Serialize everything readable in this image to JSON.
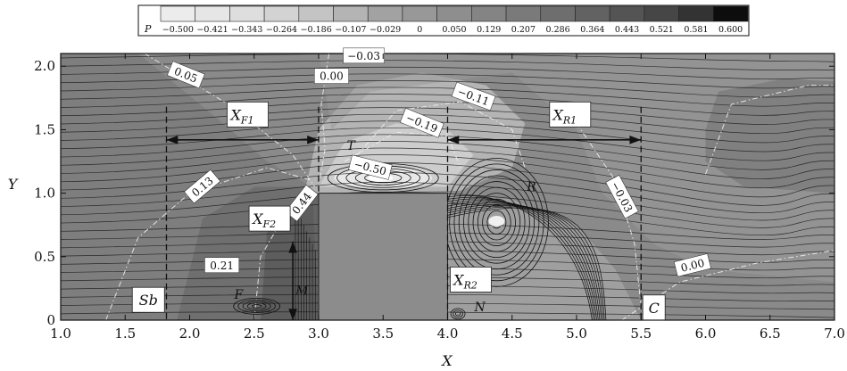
{
  "chart_data": {
    "type": "heatmap",
    "title": "",
    "xlabel": "X",
    "ylabel": "Y",
    "xlim": [
      1.0,
      7.0
    ],
    "ylim": [
      0.0,
      2.1
    ],
    "x_ticks": [
      "1.0",
      "1.5",
      "2.0",
      "2.5",
      "3.0",
      "3.5",
      "4.0",
      "4.5",
      "5.0",
      "5.5",
      "6.0",
      "6.5",
      "7.0"
    ],
    "y_ticks": [
      "0",
      "0.5",
      "1.0",
      "1.5",
      "2.0"
    ],
    "colorbar": {
      "title": "P",
      "levels": [
        "−0.500",
        "−0.421",
        "−0.343",
        "−0.264",
        "−0.186",
        "−0.107",
        "−0.029",
        "0",
        "0.050",
        "0.129",
        "0.207",
        "0.286",
        "0.364",
        "0.443",
        "0.521",
        "0.581",
        "0.600"
      ],
      "colors": [
        "#ececec",
        "#e6e6e6",
        "#dedede",
        "#d3d3d3",
        "#c4c4c4",
        "#b4b4b4",
        "#a2a2a2",
        "#989898",
        "#8e8e8e",
        "#848484",
        "#7a7a7a",
        "#6e6e6e",
        "#626262",
        "#545454",
        "#464646",
        "#333333",
        "#0d0d0d"
      ]
    },
    "obstacle": {
      "x": [
        3.0,
        4.0
      ],
      "y": [
        0.0,
        1.0
      ],
      "color": "#8c8c8c"
    },
    "contour_labels": [
      {
        "text": "0.05",
        "x": 1.97,
        "y": 1.93,
        "rot": 22
      },
      {
        "text": "0.00",
        "x": 3.1,
        "y": 1.92,
        "rot": 0
      },
      {
        "text": "−0.03",
        "x": 3.35,
        "y": 2.08,
        "rot": 0
      },
      {
        "text": "−0.11",
        "x": 4.2,
        "y": 1.76,
        "rot": 20
      },
      {
        "text": "−0.19",
        "x": 3.8,
        "y": 1.55,
        "rot": 22
      },
      {
        "text": "−0.50",
        "x": 3.4,
        "y": 1.2,
        "rot": 14
      },
      {
        "text": "0.13",
        "x": 2.1,
        "y": 1.05,
        "rot": -40
      },
      {
        "text": "0.44",
        "x": 2.87,
        "y": 0.92,
        "rot": -52
      },
      {
        "text": "0.21",
        "x": 2.25,
        "y": 0.43,
        "rot": 0
      },
      {
        "text": "−0.03",
        "x": 5.35,
        "y": 0.97,
        "rot": 62
      },
      {
        "text": "0.00",
        "x": 5.9,
        "y": 0.43,
        "rot": -14
      }
    ],
    "region_labels": [
      {
        "text": "X_F1",
        "base": "X",
        "sub": "F1",
        "x": 2.45,
        "y": 1.62
      },
      {
        "text": "X_R1",
        "base": "X",
        "sub": "R1",
        "x": 4.95,
        "y": 1.62
      },
      {
        "text": "X_F2",
        "base": "X",
        "sub": "F2",
        "x": 2.62,
        "y": 0.8
      },
      {
        "text": "X_R2",
        "base": "X",
        "sub": "R2",
        "x": 4.18,
        "y": 0.32
      },
      {
        "text": "Sb",
        "base": "Sb",
        "sub": "",
        "x": 1.68,
        "y": 0.16
      },
      {
        "text": "C",
        "base": "C",
        "sub": "",
        "x": 5.6,
        "y": 0.1
      }
    ],
    "point_labels": [
      {
        "text": "T",
        "x": 3.25,
        "y": 1.34
      },
      {
        "text": "R",
        "x": 4.65,
        "y": 1.02
      },
      {
        "text": "N",
        "x": 4.25,
        "y": 0.07
      },
      {
        "text": "F",
        "x": 2.38,
        "y": 0.17
      },
      {
        "text": "M",
        "x": 2.87,
        "y": 0.2
      }
    ],
    "dashed_lines_x": [
      1.82,
      4.0,
      5.5
    ],
    "dimension_arrows": [
      {
        "x1": 1.82,
        "x2": 3.0,
        "y": 1.42
      },
      {
        "x1": 4.0,
        "x2": 5.5,
        "y": 1.42
      }
    ],
    "vertical_arrow": {
      "x": 2.8,
      "y1": 0.0,
      "y2": 0.62
    }
  }
}
